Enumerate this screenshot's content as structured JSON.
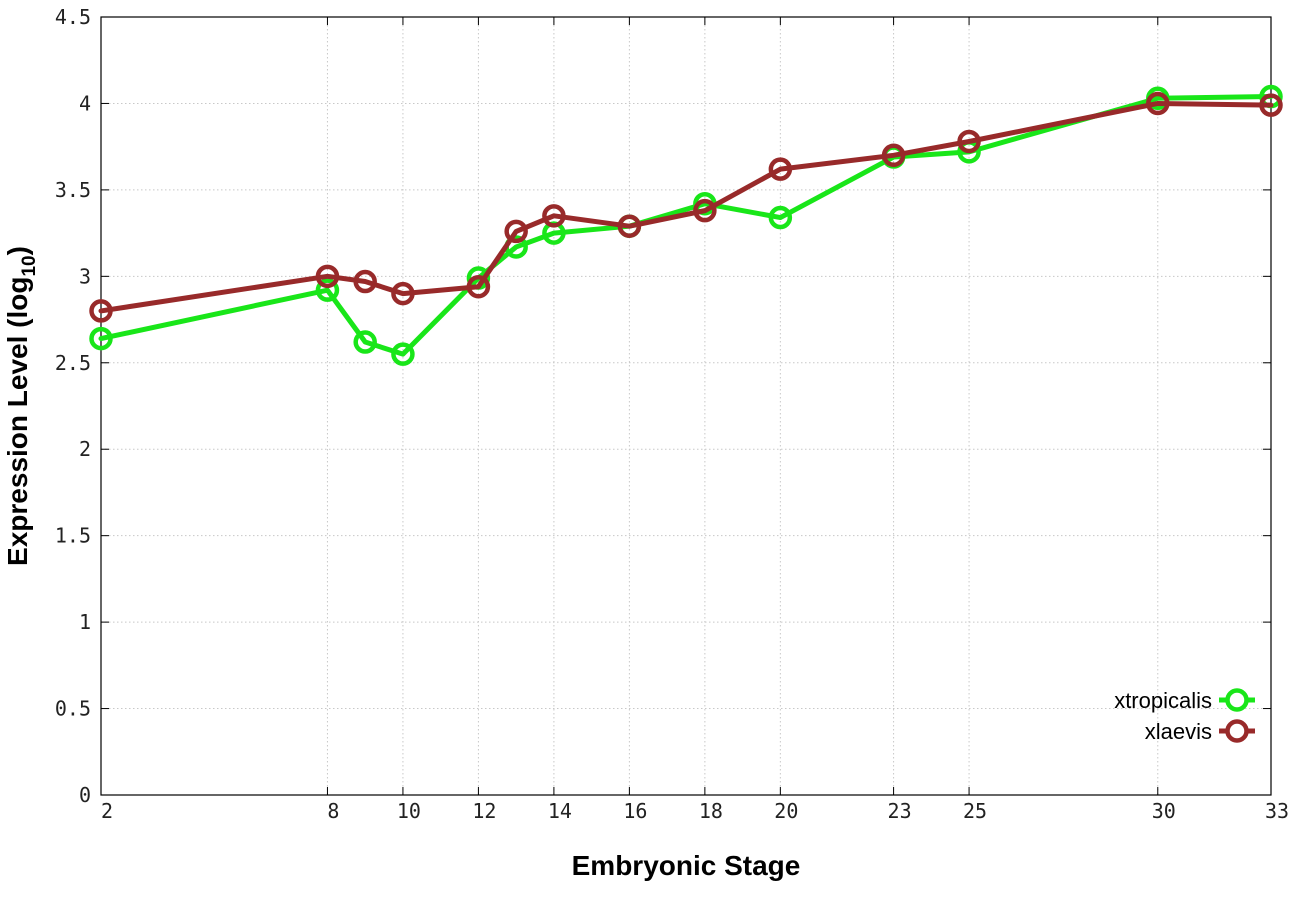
{
  "chart_data": {
    "type": "line",
    "xlabel": "Embryonic Stage",
    "ylabel": "Expression Level (log",
    "ylabel_sub": "10",
    "ylabel_close": ")",
    "x_ticks": [
      "2",
      "8",
      "10",
      "12",
      "14",
      "16",
      "18",
      "20",
      "23",
      "25",
      "30",
      "33"
    ],
    "y_ticks": [
      "0",
      "0.5",
      "1",
      "1.5",
      "2",
      "2.5",
      "3",
      "3.5",
      "4",
      "4.5"
    ],
    "ylim": [
      0,
      4.5
    ],
    "grid": true,
    "legend_position": "bottom-right",
    "x": [
      "2",
      "8",
      "9",
      "10",
      "12",
      "13",
      "14",
      "16",
      "18",
      "20",
      "23",
      "25",
      "30",
      "33"
    ],
    "series": [
      {
        "name": "xtropicalis",
        "color": "#19e619",
        "values": [
          2.64,
          2.92,
          2.62,
          2.55,
          2.99,
          3.17,
          3.25,
          3.29,
          3.42,
          3.34,
          3.69,
          3.72,
          4.03,
          4.04
        ]
      },
      {
        "name": "xlaevis",
        "color": "#982a2a",
        "values": [
          2.8,
          3.0,
          2.97,
          2.9,
          2.94,
          3.26,
          3.35,
          3.29,
          3.38,
          3.62,
          3.7,
          3.78,
          4.0,
          3.99
        ]
      }
    ]
  }
}
